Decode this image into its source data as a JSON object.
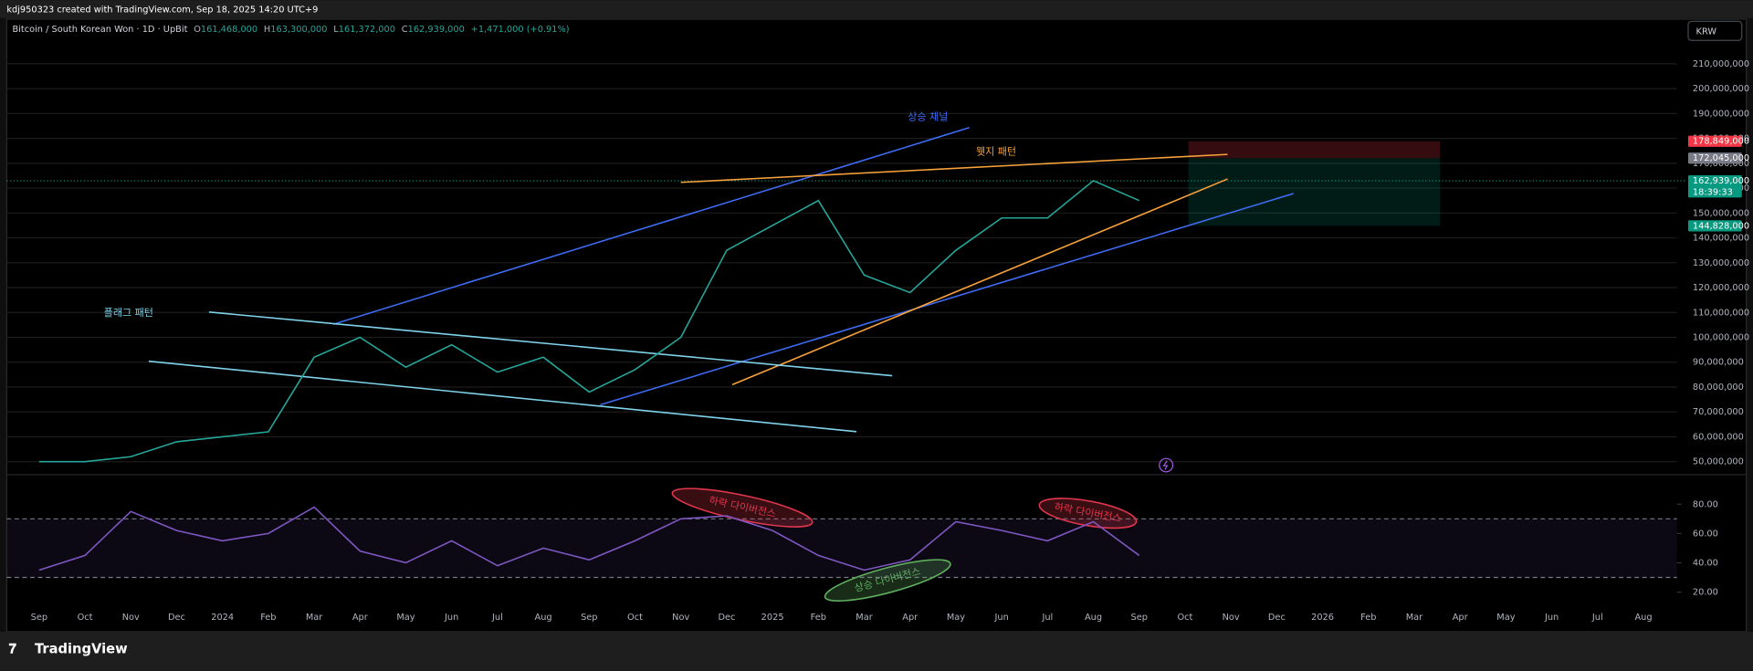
{
  "header": {
    "caption": "kdj950323 created with TradingView.com, Sep 18, 2025 14:20 UTC+9"
  },
  "legend": {
    "symbol": "Bitcoin / South Korean Won · 1D · UpBit",
    "open_key": "O",
    "open": "161,468,000",
    "high_key": "H",
    "high": "163,300,000",
    "low_key": "L",
    "low": "161,372,000",
    "close_key": "C",
    "close": "162,939,000",
    "change": "+1,471,000 (+0.91%)"
  },
  "currency": "KRW",
  "footer": {
    "brand": "TradingView"
  },
  "chart_data": [
    {
      "type": "line",
      "color": "#26a69a",
      "categories": [
        "Sep",
        "Oct",
        "Nov",
        "Dec",
        "2024",
        "Feb",
        "Mar",
        "Apr",
        "May",
        "Jun",
        "Jul",
        "Aug",
        "Sep",
        "Oct",
        "Nov",
        "Dec",
        "2025",
        "Feb",
        "Mar",
        "Apr",
        "May",
        "Jun",
        "Jul",
        "Aug",
        "Sep",
        "Oct",
        "Nov",
        "Dec",
        "2026",
        "Feb",
        "Mar",
        "Apr",
        "May",
        "Jun",
        "Jul",
        "Aug"
      ],
      "values": [
        50000000,
        50000000,
        52000000,
        58000000,
        60000000,
        62000000,
        92000000,
        100000000,
        88000000,
        97000000,
        86000000,
        92000000,
        78000000,
        87000000,
        100000000,
        135000000,
        145000000,
        155000000,
        125000000,
        118000000,
        135000000,
        148000000,
        148000000,
        163000000,
        155000000,
        null,
        null,
        null,
        null,
        null,
        null,
        null,
        null,
        null,
        null,
        null
      ],
      "ylim": [
        45000000,
        227500000
      ],
      "yticks": [
        {
          "value": 50000000,
          "label": "50,000,000"
        },
        {
          "value": 60000000,
          "label": "60,000,000"
        },
        {
          "value": 70000000,
          "label": "70,000,000"
        },
        {
          "value": 80000000,
          "label": "80,000,000"
        },
        {
          "value": 90000000,
          "label": "90,000,000"
        },
        {
          "value": 100000000,
          "label": "100,000,000"
        },
        {
          "value": 110000000,
          "label": "110,000,000"
        },
        {
          "value": 120000000,
          "label": "120,000,000"
        },
        {
          "value": 130000000,
          "label": "130,000,000"
        },
        {
          "value": 140000000,
          "label": "140,000,000"
        },
        {
          "value": 150000000,
          "label": "150,000,000"
        },
        {
          "value": 160000000,
          "label": "160,000,000"
        },
        {
          "value": 170000000,
          "label": "170,000,000"
        },
        {
          "value": 180000000,
          "label": "180,000,000"
        },
        {
          "value": 190000000,
          "label": "190,000,000"
        },
        {
          "value": 200000000,
          "label": "200,000,000"
        },
        {
          "value": 210000000,
          "label": "210,000,000"
        }
      ],
      "grid": true,
      "price_labels": [
        {
          "value": 178849000,
          "label": "178,849,000",
          "color": "#f23645"
        },
        {
          "value": 172045000,
          "label": "172,045,000",
          "color": "#787b86"
        },
        {
          "value": 162939000,
          "label": "162,939,000",
          "color": "#089981",
          "countdown": "18:39:33"
        },
        {
          "value": 144828000,
          "label": "144,828,000",
          "color": "#089981"
        }
      ],
      "annotations": [
        "상승 채널",
        "웻지 패턴",
        "플래그 패턴"
      ]
    },
    {
      "type": "line",
      "color": "#7e57c2",
      "values": [
        35,
        45,
        75,
        62,
        55,
        60,
        78,
        48,
        40,
        55,
        38,
        50,
        42,
        55,
        70,
        72,
        62,
        45,
        35,
        42,
        68,
        62,
        55,
        68,
        45
      ],
      "ylim": [
        12,
        99
      ],
      "yticks": [
        {
          "value": 20,
          "label": "20.00"
        },
        {
          "value": 40,
          "label": "40.00"
        },
        {
          "value": 60,
          "label": "60.00"
        },
        {
          "value": 80,
          "label": "80.00"
        }
      ],
      "bands": [
        30,
        70
      ],
      "annotations": [
        "하락 다이버전스",
        "하락 다이버전스",
        "상승 다이버전스"
      ]
    }
  ]
}
